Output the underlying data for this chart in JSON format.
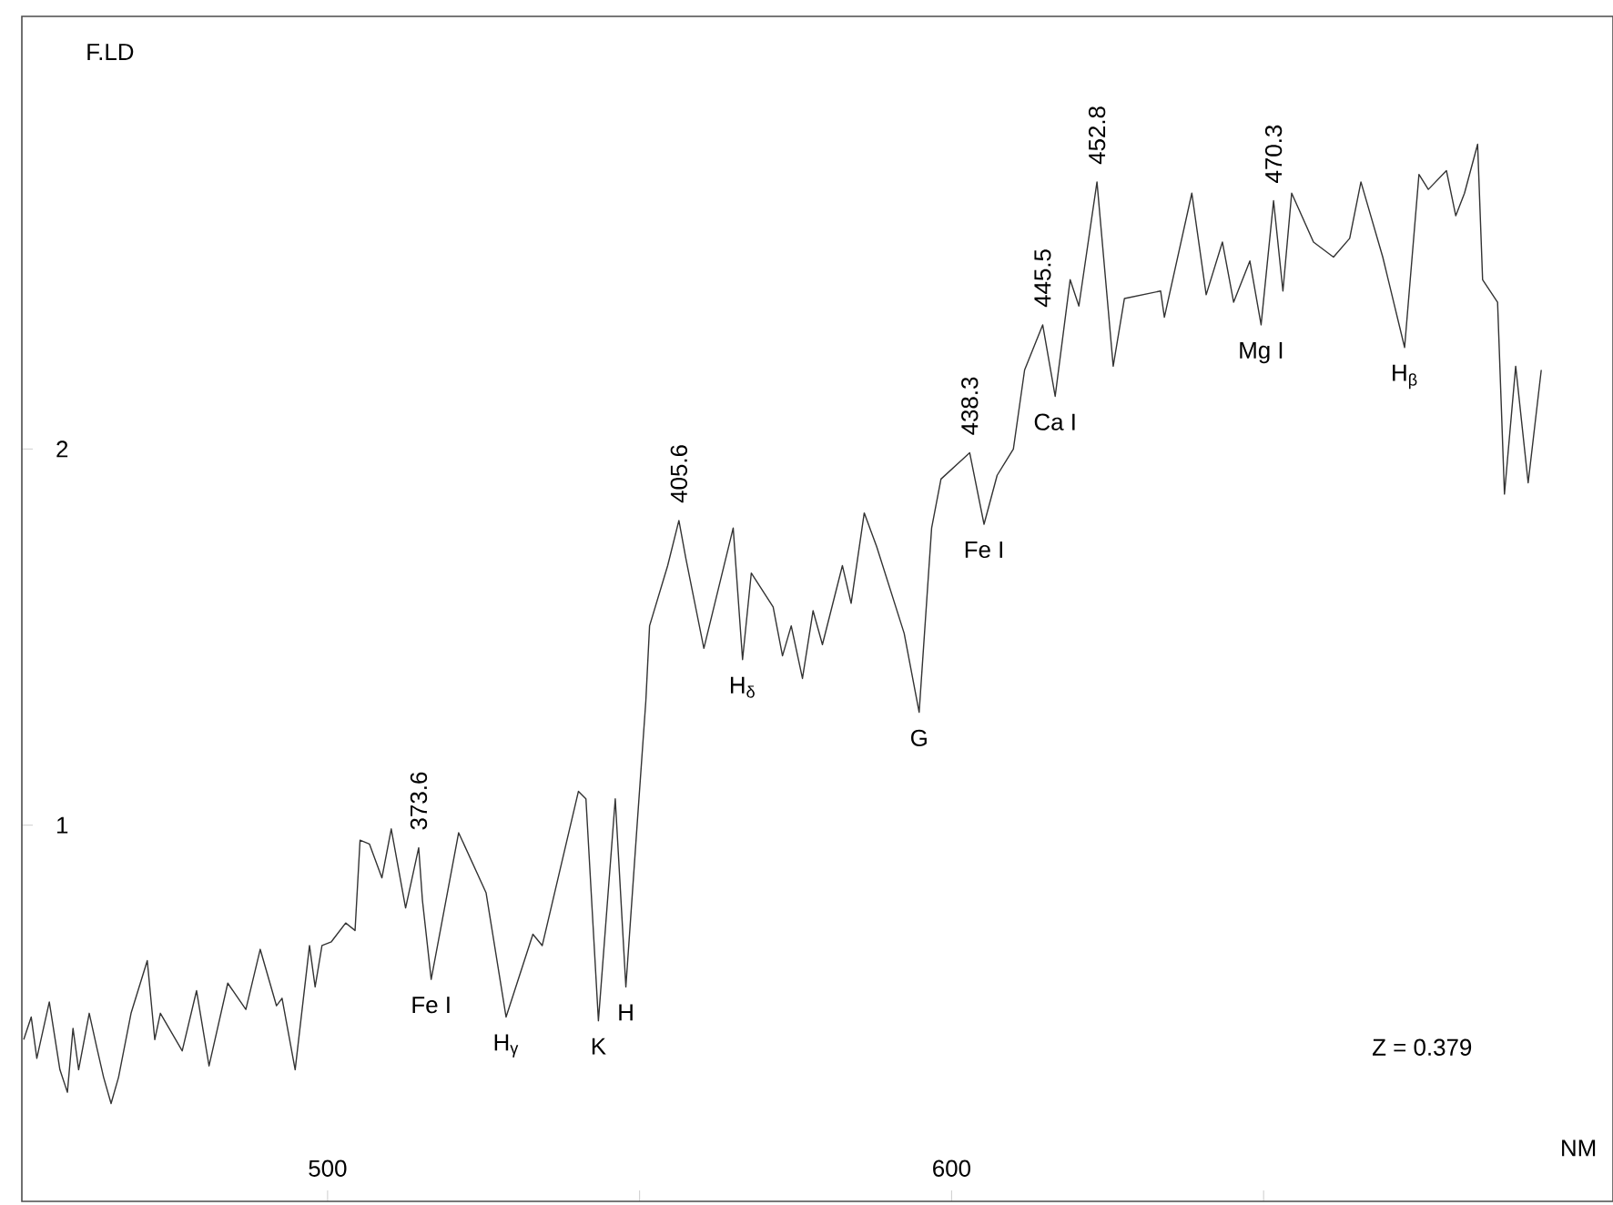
{
  "chart_data": {
    "type": "line",
    "xlabel": "NM",
    "ylabel": "F.LD",
    "color": "#333333",
    "x": [
      451.3,
      452.5,
      453.4,
      455.4,
      457.1,
      458.3,
      459.2,
      460.1,
      461.8,
      463.0,
      464.1,
      465.3,
      466.5,
      468.5,
      471.1,
      472.3,
      473.2,
      474.6,
      476.7,
      479.0,
      481.0,
      484.0,
      486.9,
      489.2,
      491.8,
      492.7,
      494.8,
      497.1,
      498.0,
      499.1,
      500.6,
      502.9,
      504.4,
      505.2,
      506.7,
      508.7,
      510.2,
      512.5,
      514.6,
      515.2,
      516.6,
      521.0,
      525.4,
      528.6,
      532.9,
      534.4,
      540.2,
      541.4,
      543.4,
      546.1,
      547.8,
      549.6,
      551.0,
      551.6,
      554.5,
      556.3,
      557.4,
      560.3,
      565.0,
      566.5,
      567.9,
      571.4,
      572.9,
      574.3,
      576.1,
      577.8,
      579.3,
      582.5,
      583.9,
      586.0,
      588.0,
      592.4,
      594.8,
      596.8,
      598.3,
      602.9,
      605.2,
      607.3,
      609.9,
      611.7,
      614.6,
      616.6,
      619.0,
      620.4,
      623.3,
      625.9,
      627.7,
      633.5,
      634.1,
      638.5,
      640.8,
      643.4,
      645.2,
      647.8,
      649.6,
      651.6,
      653.1,
      654.5,
      658.0,
      661.2,
      663.8,
      665.6,
      669.1,
      672.6,
      674.9,
      676.4,
      679.3,
      680.8,
      682.2,
      684.3,
      685.1,
      687.5,
      688.6,
      690.4,
      692.4,
      694.5
    ],
    "values": [
      0.43,
      0.49,
      0.38,
      0.53,
      0.35,
      0.29,
      0.46,
      0.35,
      0.5,
      0.41,
      0.33,
      0.26,
      0.33,
      0.5,
      0.64,
      0.43,
      0.5,
      0.46,
      0.4,
      0.56,
      0.36,
      0.58,
      0.51,
      0.67,
      0.52,
      0.54,
      0.35,
      0.68,
      0.57,
      0.68,
      0.69,
      0.74,
      0.72,
      0.96,
      0.95,
      0.86,
      0.99,
      0.78,
      0.94,
      0.8,
      0.59,
      0.98,
      0.82,
      0.49,
      0.71,
      0.68,
      1.09,
      1.07,
      0.48,
      1.07,
      0.57,
      1.0,
      1.33,
      1.53,
      1.69,
      1.81,
      1.71,
      1.47,
      1.79,
      1.44,
      1.67,
      1.58,
      1.45,
      1.53,
      1.39,
      1.57,
      1.48,
      1.69,
      1.59,
      1.83,
      1.74,
      1.51,
      1.3,
      1.79,
      1.92,
      1.99,
      1.8,
      1.93,
      2.0,
      2.21,
      2.33,
      2.14,
      2.45,
      2.38,
      2.71,
      2.22,
      2.4,
      2.42,
      2.35,
      2.68,
      2.41,
      2.55,
      2.39,
      2.5,
      2.33,
      2.66,
      2.42,
      2.68,
      2.55,
      2.51,
      2.56,
      2.71,
      2.51,
      2.27,
      2.73,
      2.69,
      2.74,
      2.62,
      2.68,
      2.81,
      2.45,
      2.39,
      1.88,
      2.22,
      1.91,
      2.21
    ],
    "xlim": [
      451,
      706
    ],
    "ylim": [
      0,
      3.15
    ],
    "xticks": [
      500,
      {
        "value": 550,
        "label": null
      },
      600,
      {
        "value": 650,
        "label": null
      }
    ],
    "yticks": [
      1,
      2
    ],
    "annotations": [
      {
        "text": "373.6",
        "x": 514.6,
        "y": 0.94
      },
      {
        "text": "Fe I",
        "x": 516.6,
        "y": 0.59
      },
      {
        "text": "H$_{γ}$",
        "x": 528.6,
        "y": 0.49
      },
      {
        "text": "K",
        "x": 543.4,
        "y": 0.48
      },
      {
        "text": "H",
        "x": 547.8,
        "y": 0.57
      },
      {
        "text": "405.6",
        "x": 556.3,
        "y": 1.81
      },
      {
        "text": "H$_{δ}$",
        "x": 566.5,
        "y": 1.44
      },
      {
        "text": "G",
        "x": 594.8,
        "y": 1.3
      },
      {
        "text": "438.3",
        "x": 602.9,
        "y": 1.99
      },
      {
        "text": "Fe I",
        "x": 605.2,
        "y": 1.8
      },
      {
        "text": "445.5",
        "x": 614.6,
        "y": 2.33
      },
      {
        "text": "Ca I",
        "x": 616.6,
        "y": 2.14
      },
      {
        "text": "452.8",
        "x": 623.3,
        "y": 2.71
      },
      {
        "text": "470.3",
        "x": 651.6,
        "y": 2.66
      },
      {
        "text": "Mg I",
        "x": 649.6,
        "y": 2.33
      },
      {
        "text": "H$_{β}$",
        "x": 672.6,
        "y": 2.27
      },
      "Z = 0.379"
    ]
  }
}
